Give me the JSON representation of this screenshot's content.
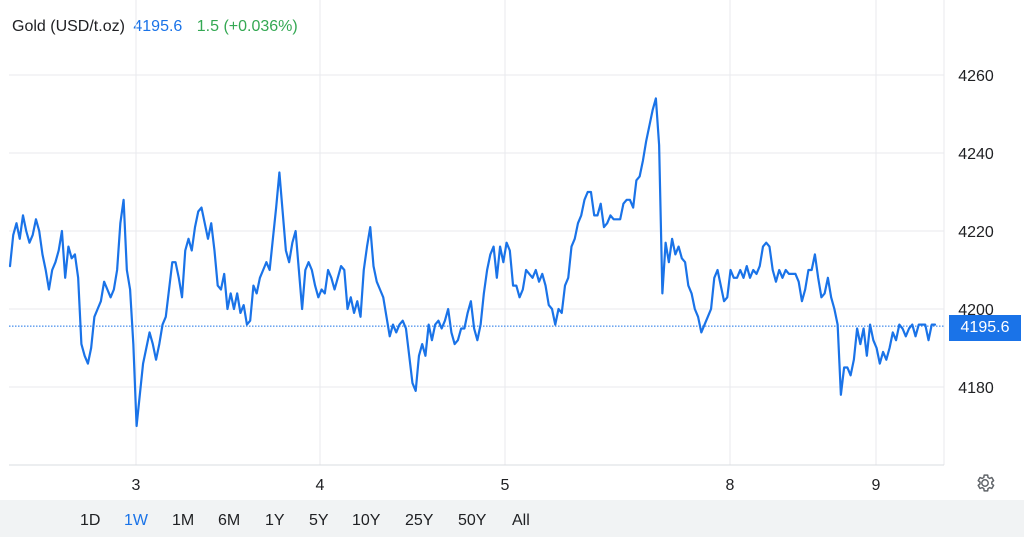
{
  "header": {
    "symbol": "Gold (USD/t.oz)",
    "price": "4195.6",
    "change": "1.5 (+0.036%)"
  },
  "colors": {
    "line": "#1a73e8",
    "positive": "#34a853",
    "grid": "#e8eaed"
  },
  "icons": {
    "settings": "gear-icon"
  },
  "ranges": [
    "1D",
    "1W",
    "1M",
    "6M",
    "1Y",
    "5Y",
    "10Y",
    "25Y",
    "50Y",
    "All"
  ],
  "active_range": "1W",
  "current_price_label": "4195.6",
  "chart_data": {
    "type": "line",
    "title": "Gold (USD/t.oz)",
    "x_tick_labels": [
      "3",
      "4",
      "5",
      "8",
      "9"
    ],
    "y_tick_labels": [
      "4180",
      "4200",
      "4220",
      "4240",
      "4260"
    ],
    "ylim": [
      4160,
      4275
    ],
    "grid": true,
    "current_price": 4195.6,
    "series": [
      {
        "values": [
          4211,
          4219,
          4222,
          4218,
          4224,
          4220,
          4217,
          4219,
          4223,
          4220,
          4214,
          4210,
          4205,
          4210,
          4212,
          4215,
          4220,
          4208,
          4216,
          4213,
          4214,
          4208,
          4191,
          4188,
          4186,
          4190,
          4198,
          4200,
          4202,
          4207,
          4205,
          4203,
          4205,
          4210,
          4222,
          4228,
          4210,
          4205,
          4191,
          4170,
          4178,
          4186,
          4190,
          4194,
          4191,
          4187,
          4191,
          4196,
          4198,
          4205,
          4212,
          4212,
          4208,
          4203,
          4215,
          4218,
          4215,
          4221,
          4225,
          4226,
          4222,
          4218,
          4222,
          4215,
          4206,
          4205,
          4209,
          4200,
          4204,
          4200,
          4204,
          4199,
          4201,
          4196,
          4197,
          4206,
          4204,
          4208,
          4210,
          4212,
          4210,
          4218,
          4226,
          4235,
          4225,
          4215,
          4212,
          4217,
          4220,
          4210,
          4200,
          4210,
          4212,
          4210,
          4206,
          4203,
          4205,
          4204,
          4210,
          4208,
          4205,
          4208,
          4211,
          4210,
          4200,
          4203,
          4199,
          4202,
          4198,
          4210,
          4216,
          4221,
          4211,
          4207,
          4205,
          4203,
          4198,
          4193,
          4196,
          4194,
          4196,
          4197,
          4195,
          4188,
          4181,
          4179,
          4188,
          4191,
          4188,
          4196,
          4192,
          4196,
          4197,
          4195,
          4197,
          4200,
          4194,
          4191,
          4192,
          4195,
          4195,
          4199,
          4202,
          4195,
          4192,
          4196,
          4204,
          4210,
          4214,
          4216,
          4208,
          4216,
          4212,
          4217,
          4215,
          4206,
          4206,
          4203,
          4205,
          4210,
          4209,
          4208,
          4210,
          4207,
          4209,
          4206,
          4201,
          4200,
          4196,
          4200,
          4199,
          4206,
          4208,
          4216,
          4218,
          4222,
          4224,
          4228,
          4230,
          4230,
          4224,
          4224,
          4227,
          4221,
          4222,
          4224,
          4223,
          4223,
          4223,
          4227,
          4228,
          4228,
          4226,
          4233,
          4234,
          4238,
          4243,
          4247,
          4251,
          4254,
          4242,
          4204,
          4217,
          4212,
          4218,
          4214,
          4216,
          4213,
          4212,
          4206,
          4204,
          4200,
          4198,
          4194,
          4196,
          4198,
          4200,
          4208,
          4210,
          4206,
          4202,
          4203,
          4210,
          4208,
          4208,
          4210,
          4208,
          4211,
          4208,
          4210,
          4209,
          4211,
          4216,
          4217,
          4216,
          4210,
          4207,
          4210,
          4208,
          4210,
          4209,
          4209,
          4209,
          4207,
          4202,
          4205,
          4210,
          4210,
          4214,
          4208,
          4203,
          4204,
          4208,
          4203,
          4200,
          4196,
          4178,
          4185,
          4185,
          4183,
          4187,
          4195,
          4191,
          4195,
          4188,
          4196,
          4192,
          4190,
          4186,
          4189,
          4187,
          4190,
          4194,
          4192,
          4196,
          4195,
          4193,
          4195,
          4196,
          4193,
          4196,
          4196,
          4196,
          4192,
          4196,
          4196
        ]
      }
    ]
  }
}
